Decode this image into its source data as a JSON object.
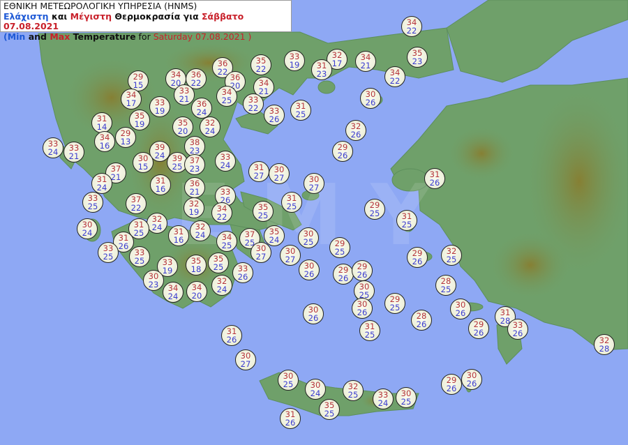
{
  "title": {
    "line1": "ΕΘΝΙΚΗ ΜΕΤΕΩΡΟΛΟΓΙΚΗ ΥΠΗΡΕΣΙΑ (HNMS)",
    "line2_min": "Ελάχιστη",
    "line2_and": " και ",
    "line2_max": "Μέγιστη",
    "line2_temp": " Θερμοκρασία για ",
    "line2_date": "Σάββατο 07.08.2021",
    "line3_min": "(Min",
    "line3_and": " and ",
    "line3_max": "Max",
    "line3_temp": " Temperature",
    "line3_for": " for ",
    "line3_date": "Saturday 07.08.2021 )"
  },
  "watermark": "EMY",
  "colors": {
    "sea": "#8ea8f4",
    "land": "#6fa06a",
    "max_text": "#b5343a",
    "min_text": "#3b3ccf"
  },
  "stations": [
    {
      "max": "34",
      "min": "22"
    },
    {
      "max": "35",
      "min": "23"
    },
    {
      "max": "36",
      "min": "22"
    },
    {
      "max": "35",
      "min": "22"
    },
    {
      "max": "33",
      "min": "19"
    },
    {
      "max": "32",
      "min": "17"
    },
    {
      "max": "31",
      "min": "23"
    },
    {
      "max": "34",
      "min": "21"
    },
    {
      "max": "34",
      "min": "22"
    },
    {
      "max": "29",
      "min": "15"
    },
    {
      "max": "34",
      "min": "20"
    },
    {
      "max": "36",
      "min": "22"
    },
    {
      "max": "36",
      "min": "20"
    },
    {
      "max": "34",
      "min": "21"
    },
    {
      "max": "33",
      "min": "21"
    },
    {
      "max": "34",
      "min": "25"
    },
    {
      "max": "30",
      "min": "26"
    },
    {
      "max": "34",
      "min": "17"
    },
    {
      "max": "33",
      "min": "19"
    },
    {
      "max": "36",
      "min": "24"
    },
    {
      "max": "33",
      "min": "22"
    },
    {
      "max": "33",
      "min": "26"
    },
    {
      "max": "31",
      "min": "25"
    },
    {
      "max": "31",
      "min": "14"
    },
    {
      "max": "35",
      "min": "19"
    },
    {
      "max": "35",
      "min": "20"
    },
    {
      "max": "32",
      "min": "24"
    },
    {
      "max": "32",
      "min": "26"
    },
    {
      "max": "34",
      "min": "16"
    },
    {
      "max": "29",
      "min": "13"
    },
    {
      "max": "33",
      "min": "24"
    },
    {
      "max": "33",
      "min": "21"
    },
    {
      "max": "38",
      "min": "23"
    },
    {
      "max": "39",
      "min": "24"
    },
    {
      "max": "29",
      "min": "26"
    },
    {
      "max": "30",
      "min": "15"
    },
    {
      "max": "39",
      "min": "25"
    },
    {
      "max": "37",
      "min": "23"
    },
    {
      "max": "33",
      "min": "24"
    },
    {
      "max": "31",
      "min": "27"
    },
    {
      "max": "30",
      "min": "27"
    },
    {
      "max": "30",
      "min": "27"
    },
    {
      "max": "31",
      "min": "26"
    },
    {
      "max": "37",
      "min": "21"
    },
    {
      "max": "31",
      "min": "24"
    },
    {
      "max": "31",
      "min": "16"
    },
    {
      "max": "36",
      "min": "21"
    },
    {
      "max": "33",
      "min": "26"
    },
    {
      "max": "33",
      "min": "25"
    },
    {
      "max": "37",
      "min": "22"
    },
    {
      "max": "32",
      "min": "19"
    },
    {
      "max": "34",
      "min": "22"
    },
    {
      "max": "35",
      "min": "25"
    },
    {
      "max": "31",
      "min": "25"
    },
    {
      "max": "29",
      "min": "25"
    },
    {
      "max": "31",
      "min": "25"
    },
    {
      "max": "30",
      "min": "24"
    },
    {
      "max": "32",
      "min": "24"
    },
    {
      "max": "31",
      "min": "25"
    },
    {
      "max": "31",
      "min": "16"
    },
    {
      "max": "32",
      "min": "24"
    },
    {
      "max": "31",
      "min": "26"
    },
    {
      "max": "34",
      "min": "25"
    },
    {
      "max": "37",
      "min": "25"
    },
    {
      "max": "35",
      "min": "24"
    },
    {
      "max": "30",
      "min": "25"
    },
    {
      "max": "29",
      "min": "25"
    },
    {
      "max": "30",
      "min": "27"
    },
    {
      "max": "30",
      "min": "27"
    },
    {
      "max": "33",
      "min": "25"
    },
    {
      "max": "33",
      "min": "25"
    },
    {
      "max": "35",
      "min": "25"
    },
    {
      "max": "33",
      "min": "19"
    },
    {
      "max": "35",
      "min": "18"
    },
    {
      "max": "33",
      "min": "26"
    },
    {
      "max": "30",
      "min": "26"
    },
    {
      "max": "29",
      "min": "26"
    },
    {
      "max": "29",
      "min": "26"
    },
    {
      "max": "29",
      "min": "26"
    },
    {
      "max": "32",
      "min": "25"
    },
    {
      "max": "30",
      "min": "23"
    },
    {
      "max": "34",
      "min": "24"
    },
    {
      "max": "34",
      "min": "20"
    },
    {
      "max": "32",
      "min": "24"
    },
    {
      "max": "30",
      "min": "25"
    },
    {
      "max": "28",
      "min": "25"
    },
    {
      "max": "30",
      "min": "26"
    },
    {
      "max": "30",
      "min": "26"
    },
    {
      "max": "29",
      "min": "25"
    },
    {
      "max": "28",
      "min": "26"
    },
    {
      "max": "30",
      "min": "26"
    },
    {
      "max": "31",
      "min": "25"
    },
    {
      "max": "29",
      "min": "26"
    },
    {
      "max": "31",
      "min": "28"
    },
    {
      "max": "33",
      "min": "26"
    },
    {
      "max": "31",
      "min": "26"
    },
    {
      "max": "32",
      "min": "28"
    },
    {
      "max": "30",
      "min": "27"
    },
    {
      "max": "30",
      "min": "25"
    },
    {
      "max": "30",
      "min": "24"
    },
    {
      "max": "32",
      "min": "25"
    },
    {
      "max": "33",
      "min": "24"
    },
    {
      "max": "30",
      "min": "25"
    },
    {
      "max": "35",
      "min": "25"
    },
    {
      "max": "29",
      "min": "26"
    },
    {
      "max": "30",
      "min": "26"
    },
    {
      "max": "31",
      "min": "26"
    }
  ]
}
